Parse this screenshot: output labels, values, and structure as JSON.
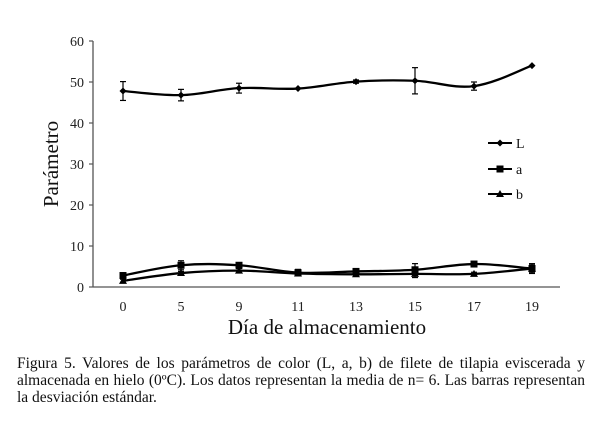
{
  "chart_data": {
    "type": "line",
    "title": "",
    "xlabel": "Día de almacenamiento",
    "ylabel": "Parámetro",
    "x": [
      0,
      5,
      9,
      11,
      13,
      15,
      17,
      19
    ],
    "x_tick_labels": [
      "0",
      "5",
      "9",
      "11",
      "13",
      "15",
      "17",
      "19"
    ],
    "y_ticks": [
      0,
      10,
      20,
      30,
      40,
      50,
      60
    ],
    "ylim": [
      0,
      60
    ],
    "grid": false,
    "legend_position": "right",
    "series": [
      {
        "name": "L",
        "marker": "diamond",
        "values": [
          47.8,
          46.8,
          48.5,
          48.4,
          50.1,
          50.3,
          49.0,
          54.0
        ],
        "error": [
          2.3,
          1.4,
          1.2,
          0.3,
          0.4,
          3.2,
          1.0,
          0.3
        ]
      },
      {
        "name": "a",
        "marker": "square",
        "values": [
          2.8,
          5.3,
          5.3,
          3.5,
          3.8,
          4.2,
          5.6,
          4.5
        ],
        "error": [
          0.6,
          1.1,
          0.5,
          0.8,
          0.4,
          1.5,
          0.4,
          1.2
        ]
      },
      {
        "name": "b",
        "marker": "triangle",
        "values": [
          1.5,
          3.4,
          4.0,
          3.3,
          3.1,
          3.2,
          3.2,
          4.5
        ],
        "error": [
          0.4,
          0.4,
          0.5,
          0.4,
          0.4,
          0.9,
          0.4,
          0.9
        ]
      }
    ]
  },
  "caption": "Figura 5. Valores de los parámetros de color (L, a, b) de filete de tilapia eviscerada y almacenada en hielo (0ºC). Los datos representan la media de n= 6. Las barras representan la desviación estándar."
}
